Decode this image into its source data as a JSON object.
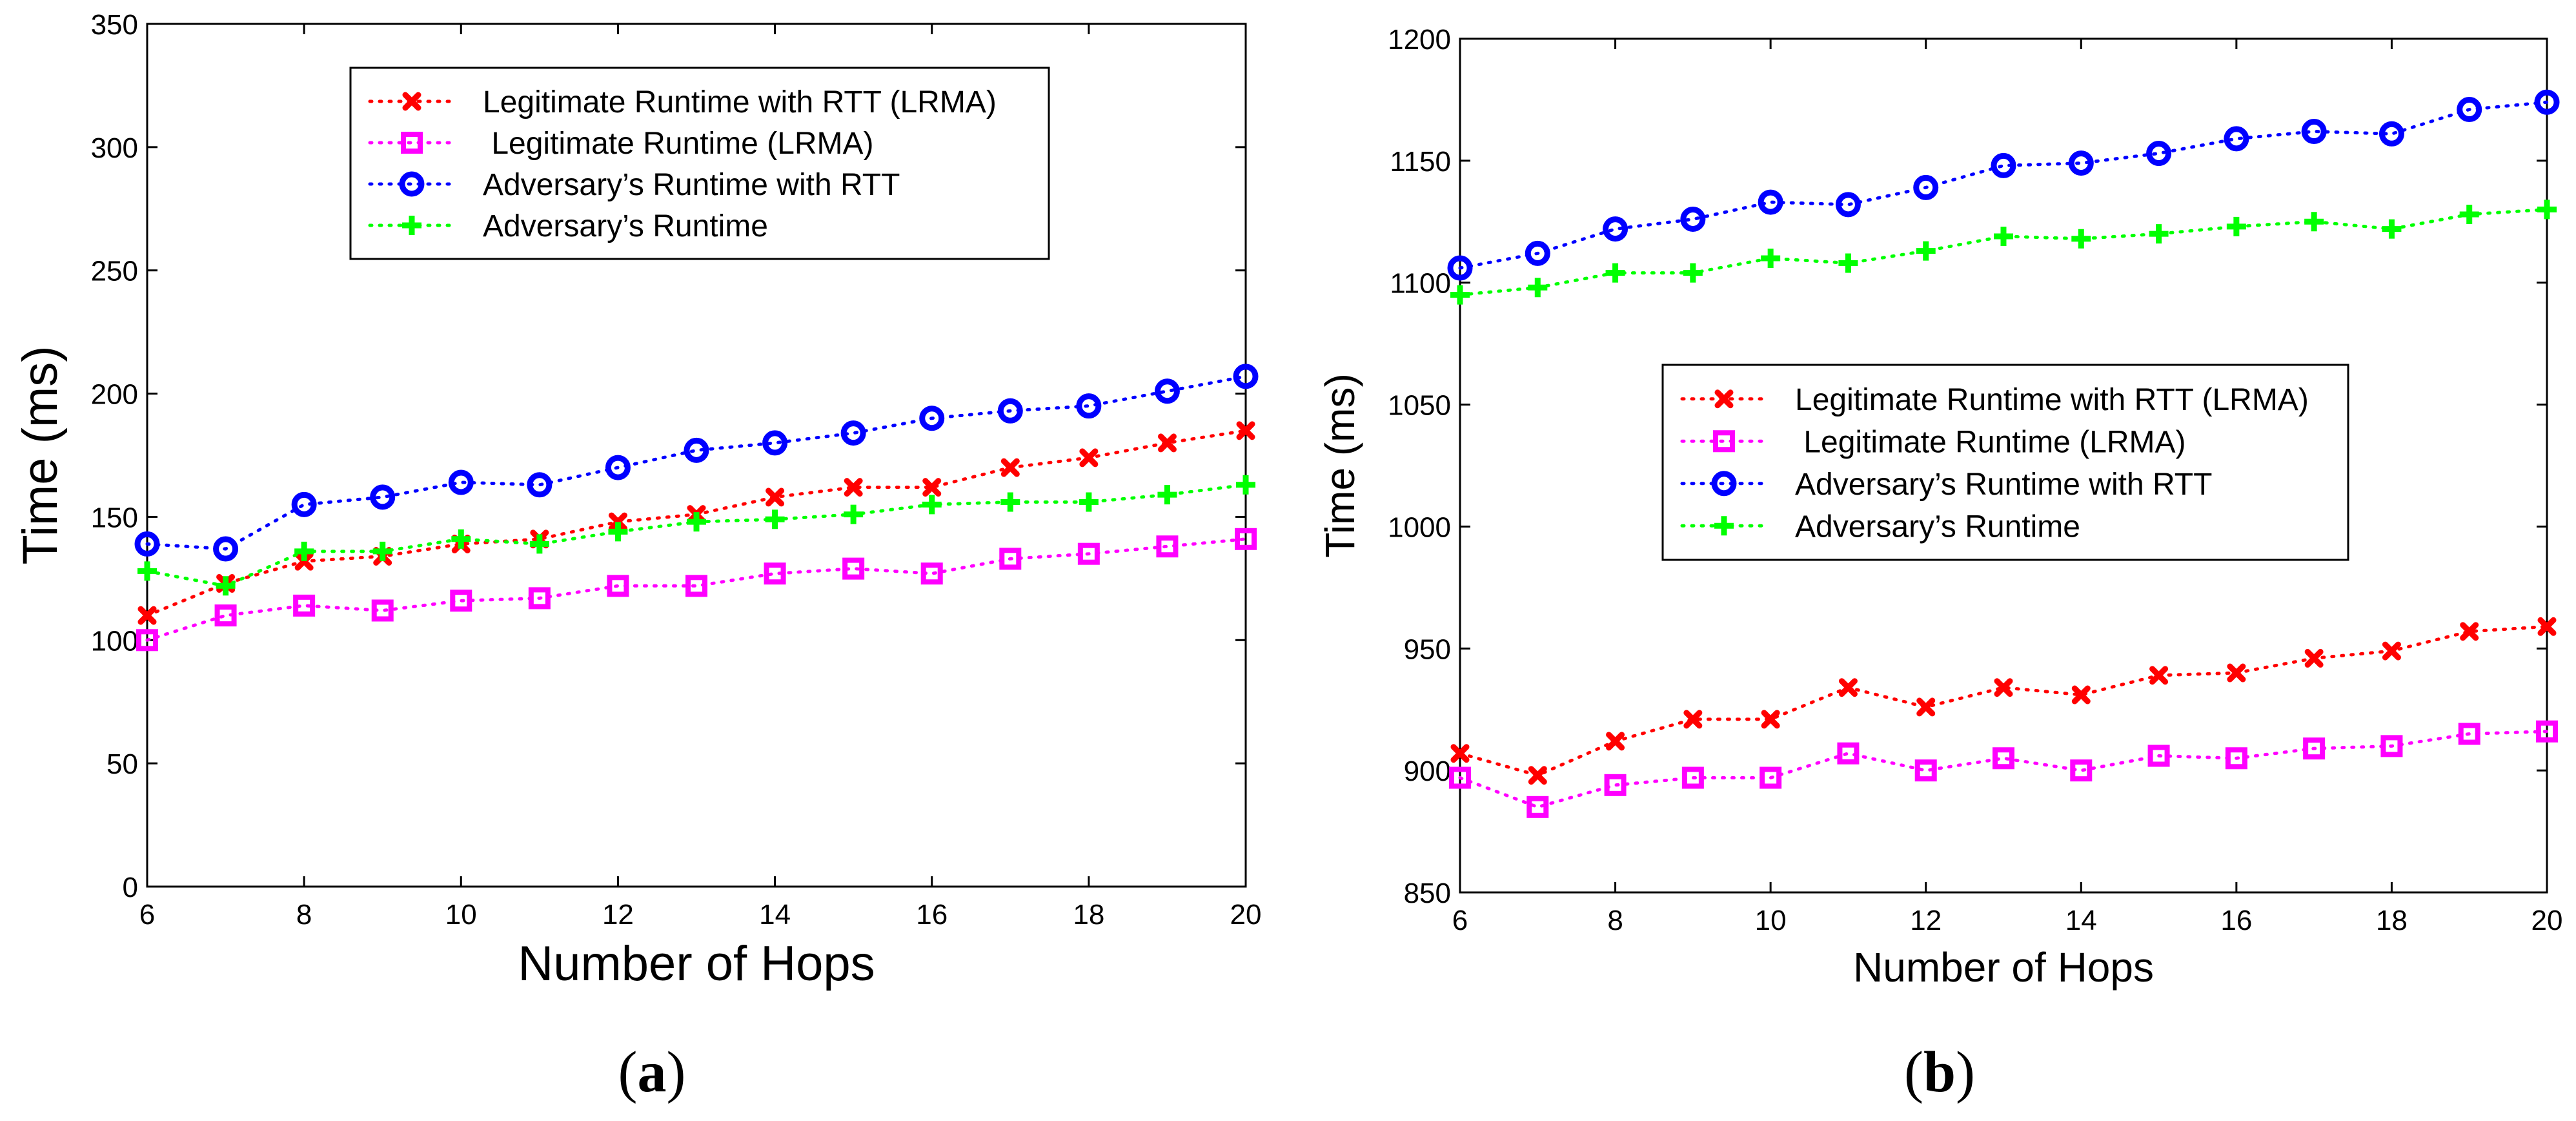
{
  "chart_data": [
    {
      "type": "line",
      "panel_label": "a",
      "title": "",
      "xlabel": "Number of Hops",
      "ylabel": "Time (ms)",
      "xlim": [
        6,
        20
      ],
      "ylim": [
        0,
        350
      ],
      "xticks": [
        6,
        8,
        10,
        12,
        14,
        16,
        18,
        20
      ],
      "yticks": [
        0,
        50,
        100,
        150,
        200,
        250,
        300,
        350
      ],
      "legend_position": "top-center",
      "x": [
        6,
        7,
        8,
        9,
        10,
        11,
        12,
        13,
        14,
        15,
        16,
        17,
        18,
        19,
        20
      ],
      "series": [
        {
          "name": "Legitimate Runtime with RTT (LRMA)",
          "color": "#ff0000",
          "marker": "x",
          "values": [
            110,
            123,
            132,
            134,
            139,
            141,
            148,
            151,
            158,
            162,
            162,
            170,
            174,
            180,
            185
          ]
        },
        {
          "name": " Legitimate Runtime (LRMA)",
          "color": "#ff00ff",
          "marker": "square",
          "values": [
            100,
            110,
            114,
            112,
            116,
            117,
            122,
            122,
            127,
            129,
            127,
            133,
            135,
            138,
            141
          ]
        },
        {
          "name": "Adversary’s Runtime with RTT",
          "color": "#0000ff",
          "marker": "circle",
          "values": [
            139,
            137,
            155,
            158,
            164,
            163,
            170,
            177,
            180,
            184,
            190,
            193,
            195,
            201,
            207
          ]
        },
        {
          "name": "Adversary’s Runtime",
          "color": "#00ff00",
          "marker": "plus",
          "values": [
            128,
            122,
            136,
            136,
            141,
            139,
            144,
            148,
            149,
            151,
            155,
            156,
            156,
            159,
            163
          ]
        }
      ]
    },
    {
      "type": "line",
      "panel_label": "b",
      "title": "",
      "xlabel": "Number of Hops",
      "ylabel": "Time (ms)",
      "xlim": [
        6,
        20
      ],
      "ylim": [
        850,
        1200
      ],
      "xticks": [
        6,
        8,
        10,
        12,
        14,
        16,
        18,
        20
      ],
      "yticks": [
        850,
        900,
        950,
        1000,
        1050,
        1100,
        1150,
        1200
      ],
      "legend_position": "center",
      "x": [
        6,
        7,
        8,
        9,
        10,
        11,
        12,
        13,
        14,
        15,
        16,
        17,
        18,
        19,
        20
      ],
      "series": [
        {
          "name": "Legitimate Runtime with RTT (LRMA)",
          "color": "#ff0000",
          "marker": "x",
          "values": [
            907,
            898,
            912,
            921,
            921,
            934,
            926,
            934,
            931,
            939,
            940,
            946,
            949,
            957,
            959
          ]
        },
        {
          "name": " Legitimate Runtime (LRMA)",
          "color": "#ff00ff",
          "marker": "square",
          "values": [
            897,
            885,
            894,
            897,
            897,
            907,
            900,
            905,
            900,
            906,
            905,
            909,
            910,
            915,
            916
          ]
        },
        {
          "name": "Adversary’s Runtime with RTT",
          "color": "#0000ff",
          "marker": "circle",
          "values": [
            1106,
            1112,
            1122,
            1126,
            1133,
            1132,
            1139,
            1148,
            1149,
            1153,
            1159,
            1162,
            1161,
            1171,
            1174
          ]
        },
        {
          "name": "Adversary’s Runtime",
          "color": "#00ff00",
          "marker": "plus",
          "values": [
            1095,
            1098,
            1104,
            1104,
            1110,
            1108,
            1113,
            1119,
            1118,
            1120,
            1123,
            1125,
            1122,
            1128,
            1130
          ]
        }
      ]
    }
  ]
}
